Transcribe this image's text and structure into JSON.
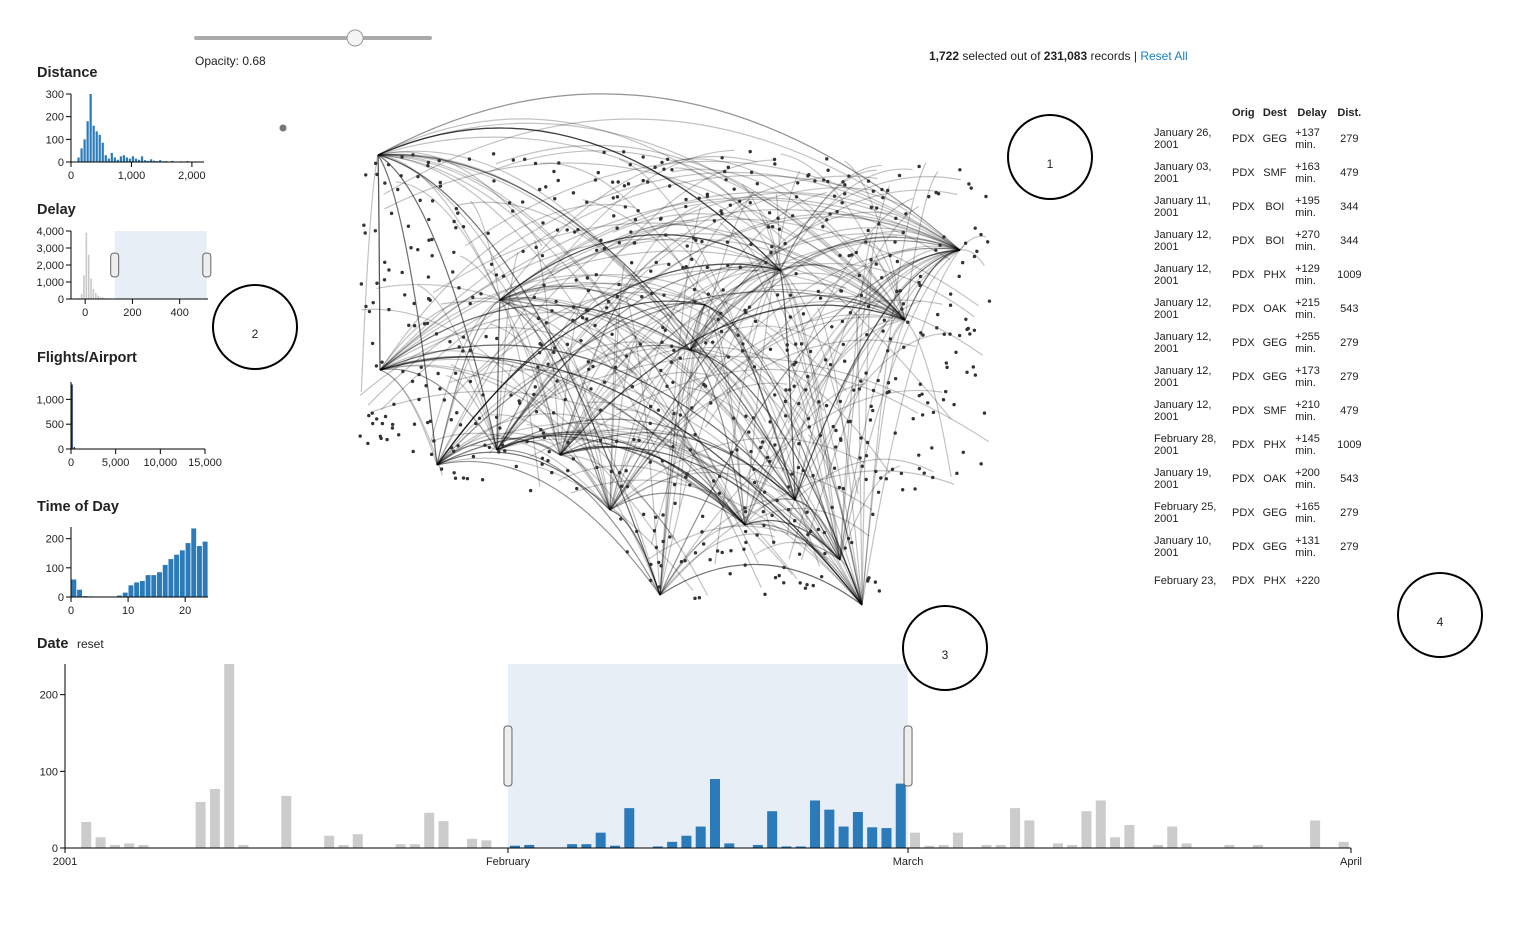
{
  "slider": {
    "label": "Opacity:",
    "value": 0.68
  },
  "header": {
    "selected": "1,722",
    "selected_text": "selected out of",
    "total": "231,083",
    "total_text": "records |",
    "reset_all": "Reset All"
  },
  "date_reset": "reset",
  "chart_data": [
    {
      "type": "histogram",
      "title": "Distance",
      "color": "#2b7bba",
      "bins": [
        100,
        150,
        200,
        250,
        300,
        350,
        400,
        450,
        500,
        550,
        600,
        650,
        700,
        750,
        800,
        850,
        900,
        950,
        1000,
        1050,
        1100,
        1150,
        1200,
        1250,
        1300,
        1350,
        1400,
        1450,
        1500,
        1550,
        1600,
        1650,
        1700,
        1750,
        1800,
        1850,
        1900,
        1950,
        2000
      ],
      "values": [
        20,
        60,
        100,
        180,
        300,
        160,
        135,
        120,
        85,
        30,
        15,
        40,
        20,
        10,
        25,
        30,
        20,
        15,
        25,
        15,
        10,
        25,
        8,
        5,
        12,
        6,
        4,
        8,
        3,
        4,
        2,
        5,
        2,
        2,
        3,
        1,
        4,
        2
      ],
      "xlim": [
        0,
        2200
      ],
      "xticks": [
        0,
        {
          "value": 1000,
          "label": "1,000"
        },
        {
          "value": 2000,
          "label": "2,000"
        }
      ],
      "ylim": [
        0,
        300
      ],
      "yticks": [
        0,
        100,
        200,
        300
      ]
    },
    {
      "type": "histogram",
      "title": "Delay",
      "color": "#c8c8c8",
      "bins": [
        -30,
        -20,
        -10,
        0,
        10,
        20,
        30,
        40,
        50,
        60,
        70,
        80,
        90,
        100,
        110,
        120
      ],
      "values": [
        50,
        300,
        1400,
        3900,
        2600,
        1200,
        600,
        350,
        200,
        120,
        80,
        50,
        30,
        20,
        10
      ],
      "brush": [
        125,
        515
      ],
      "xlim": [
        -60,
        520
      ],
      "xticks": [
        0,
        200,
        400
      ],
      "ylim": [
        0,
        4000
      ],
      "yticks": [
        0,
        {
          "value": 1000,
          "label": "1,000"
        },
        {
          "value": 2000,
          "label": "2,000"
        },
        {
          "value": 3000,
          "label": "3,000"
        },
        {
          "value": 4000,
          "label": "4,000"
        }
      ]
    },
    {
      "type": "histogram",
      "title": "Flights/Airport",
      "color": "#1f3f7a",
      "bins": [
        0,
        250,
        500,
        750,
        1000
      ],
      "values": [
        1300,
        40,
        10,
        5
      ],
      "xlim": [
        0,
        15000
      ],
      "xticks": [
        0,
        {
          "value": 5000,
          "label": "5,000"
        },
        {
          "value": 10000,
          "label": "10,000"
        },
        {
          "value": 15000,
          "label": "15,000"
        }
      ],
      "ylim": [
        0,
        1350
      ],
      "yticks": [
        0,
        500,
        {
          "value": 1000,
          "label": "1,000"
        }
      ]
    },
    {
      "type": "histogram",
      "title": "Time of Day",
      "color": "#2b7bba",
      "bins": [
        0,
        1,
        2,
        3,
        4,
        5,
        6,
        7,
        8,
        9,
        10,
        11,
        12,
        13,
        14,
        15,
        16,
        17,
        18,
        19,
        20,
        21,
        22,
        23,
        24
      ],
      "values": [
        60,
        25,
        3,
        2,
        0,
        0,
        0,
        0,
        5,
        15,
        40,
        50,
        55,
        75,
        75,
        85,
        110,
        130,
        145,
        160,
        185,
        235,
        175,
        190
      ],
      "xlim": [
        0,
        24
      ],
      "xticks": [
        0,
        10,
        20
      ],
      "ylim": [
        0,
        240
      ],
      "yticks": [
        0,
        100,
        200
      ]
    },
    {
      "type": "bar",
      "title": "Date",
      "color": "#2b7bba",
      "other_color": "#cccccc",
      "brush": [
        31,
        59
      ],
      "x": [
        0,
        1,
        2,
        3,
        4,
        5,
        6,
        7,
        8,
        9,
        10,
        11,
        12,
        13,
        14,
        15,
        16,
        17,
        18,
        19,
        20,
        21,
        22,
        23,
        24,
        25,
        26,
        27,
        28,
        29,
        30,
        31,
        32,
        33,
        34,
        35,
        36,
        37,
        38,
        39,
        40,
        41,
        42,
        43,
        44,
        45,
        46,
        47,
        48,
        49,
        50,
        51,
        52,
        53,
        54,
        55,
        56,
        57,
        58,
        59,
        60,
        61,
        62,
        63,
        64,
        65,
        66,
        67,
        68,
        69,
        70,
        71,
        72,
        73,
        74,
        75,
        76,
        77,
        78,
        79,
        80,
        81,
        82,
        83,
        84,
        85,
        86,
        87,
        88,
        89
      ],
      "values": [
        0,
        34,
        14,
        4,
        6,
        4,
        0,
        0,
        0,
        60,
        77,
        240,
        4,
        0,
        0,
        68,
        0,
        0,
        16,
        4,
        18,
        0,
        0,
        5,
        5,
        46,
        35,
        0,
        12,
        10,
        0,
        3,
        4,
        0,
        0,
        5,
        5,
        20,
        3,
        52,
        0,
        2,
        8,
        16,
        28,
        90,
        6,
        0,
        4,
        48,
        2,
        2,
        62,
        50,
        28,
        47,
        27,
        26,
        84,
        20,
        3,
        4,
        20,
        0,
        4,
        4,
        52,
        36,
        0,
        6,
        4,
        48,
        62,
        14,
        30,
        0,
        4,
        28,
        6,
        0,
        0,
        4,
        0,
        4,
        0,
        0,
        0,
        36,
        0,
        8
      ],
      "xlim": [
        0,
        90
      ],
      "xticks": [
        {
          "value": 0,
          "label": "2001"
        },
        {
          "value": 31,
          "label": "February"
        },
        {
          "value": 59,
          "label": "March"
        },
        {
          "value": 90,
          "label": "April"
        }
      ],
      "ylim": [
        0,
        240
      ],
      "yticks": [
        0,
        100,
        200
      ]
    }
  ],
  "table": {
    "columns": [
      "Orig",
      "Dest",
      "Delay",
      "Dist."
    ],
    "rows": [
      [
        "January 26, 2001",
        "PDX",
        "GEG",
        "+137 min.",
        279
      ],
      [
        "January 03, 2001",
        "PDX",
        "SMF",
        "+163 min.",
        479
      ],
      [
        "January 11, 2001",
        "PDX",
        "BOI",
        "+195 min.",
        344
      ],
      [
        "January 12, 2001",
        "PDX",
        "BOI",
        "+270 min.",
        344
      ],
      [
        "January 12, 2001",
        "PDX",
        "PHX",
        "+129 min.",
        1009
      ],
      [
        "January 12, 2001",
        "PDX",
        "OAK",
        "+215 min.",
        543
      ],
      [
        "January 12, 2001",
        "PDX",
        "GEG",
        "+255 min.",
        279
      ],
      [
        "January 12, 2001",
        "PDX",
        "GEG",
        "+173 min.",
        279
      ],
      [
        "January 12, 2001",
        "PDX",
        "SMF",
        "+210 min.",
        479
      ],
      [
        "February 28, 2001",
        "PDX",
        "PHX",
        "+145 min.",
        1009
      ],
      [
        "January 19, 2001",
        "PDX",
        "OAK",
        "+200 min.",
        543
      ],
      [
        "February 25, 2001",
        "PDX",
        "GEG",
        "+165 min.",
        279
      ],
      [
        "January 10, 2001",
        "PDX",
        "GEG",
        "+131 min.",
        279
      ],
      [
        "February 23,",
        "PDX",
        "PHX",
        "+220"
      ]
    ]
  },
  "callouts": [
    "1",
    "2",
    "3",
    "4"
  ]
}
